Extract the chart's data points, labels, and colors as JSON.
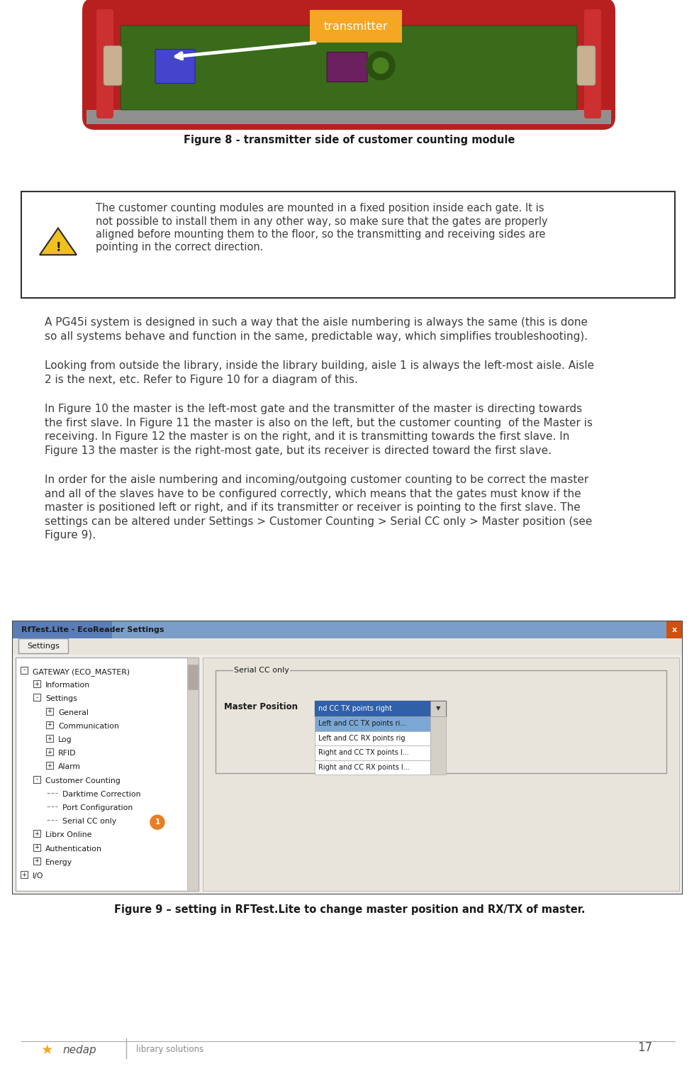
{
  "page_width": 9.86,
  "page_height": 15.17,
  "dpi": 100,
  "background_color": "#ffffff",
  "fig8_caption": "Figure 8 - transmitter side of customer counting module",
  "fig9_caption": "Figure 9 – setting in RFTest.Lite to change master position and RX/TX of master.",
  "warning_lines": [
    "The customer counting modules are mounted in a fixed position inside each gate. It is",
    "not possible to install them in any other way, so make sure that the gates are properly",
    "aligned before mounting them to the floor, so the transmitting and receiving sides are",
    "pointing in the correct direction."
  ],
  "para1_lines": [
    "A PG45i system is designed in such a way that the aisle numbering is always the same (this is done",
    "so all systems behave and function in the same, predictable way, which simplifies troubleshooting)."
  ],
  "para2_lines": [
    "Looking from outside the library, inside the library building, aisle 1 is always the left-most aisle. Aisle",
    "2 is the next, etc. Refer to Figure 10 for a diagram of this."
  ],
  "para3_lines": [
    "In Figure 10 the master is the left-most gate and the transmitter of the master is directing towards",
    "the first slave. In Figure 11 the master is also on the left, but the customer counting  of the Master is",
    "receiving. In Figure 12 the master is on the right, and it is transmitting towards the first slave. In",
    "Figure 13 the master is the right-most gate, but its receiver is directed toward the first slave."
  ],
  "para4_lines": [
    "In order for the aisle numbering and incoming/outgoing customer counting to be correct the master",
    "and all of the slaves have to be configured correctly, which means that the gates must know if the",
    "master is positioned left or right, and if its transmitter or receiver is pointing to the first slave. The",
    "settings can be altered under Settings > Customer Counting > Serial CC only > Master position (see",
    "Figure 9)."
  ],
  "page_number": "17",
  "footer_text": "library solutions",
  "transmitter_label": "transmitter",
  "transmitter_bg": "#f5a623",
  "body_font_size": 11.0,
  "caption_font_size": 10.5,
  "warning_font_size": 10.5,
  "text_color": "#3d3d3d",
  "caption_color": "#1a1a1a",
  "tree_items": [
    [
      0,
      "-",
      "GATEWAY (ECO_MASTER)"
    ],
    [
      1,
      "+",
      "Information"
    ],
    [
      1,
      "-",
      "Settings"
    ],
    [
      2,
      "+",
      "General"
    ],
    [
      2,
      "+",
      "Communication"
    ],
    [
      2,
      "+",
      "Log"
    ],
    [
      2,
      "+",
      "RFID"
    ],
    [
      2,
      "+",
      "Alarm"
    ],
    [
      1,
      "-",
      "Customer Counting"
    ],
    [
      2,
      "--",
      "Darktime Correction"
    ],
    [
      2,
      "--",
      "Port Configuration"
    ],
    [
      2,
      "--",
      "Serial CC only"
    ],
    [
      1,
      "+",
      "Librx Online"
    ],
    [
      1,
      "+",
      "Authentication"
    ],
    [
      1,
      "+",
      "Energy"
    ],
    [
      0,
      "+",
      "I/O"
    ]
  ],
  "dd_selected": "nd CC TX points right",
  "dd_options": [
    "Left and CC TX points ri...",
    "Left and CC RX points rig",
    "Right and CC TX points l...",
    "Right and CC RX points l..."
  ],
  "dd_selected_color": "#3060a8",
  "dd_highlight_color": "#7ba7d4"
}
